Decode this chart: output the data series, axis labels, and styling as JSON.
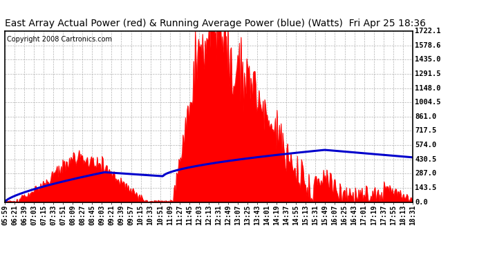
{
  "title": "East Array Actual Power (red) & Running Average Power (blue) (Watts)  Fri Apr 25 18:36",
  "copyright": "Copyright 2008 Cartronics.com",
  "ylabel_values": [
    0.0,
    143.5,
    287.0,
    430.5,
    574.0,
    717.5,
    861.0,
    1004.5,
    1148.0,
    1291.5,
    1435.0,
    1578.6,
    1722.1
  ],
  "ymax": 1722.1,
  "ymin": 0.0,
  "x_tick_labels": [
    "05:59",
    "06:21",
    "06:39",
    "07:03",
    "07:15",
    "07:33",
    "07:51",
    "08:09",
    "08:27",
    "08:45",
    "09:03",
    "09:21",
    "09:39",
    "09:57",
    "10:15",
    "10:33",
    "10:51",
    "11:09",
    "11:27",
    "11:45",
    "12:03",
    "12:13",
    "12:31",
    "12:49",
    "13:07",
    "13:25",
    "13:43",
    "14:01",
    "14:19",
    "14:37",
    "14:55",
    "15:13",
    "15:31",
    "15:49",
    "16:07",
    "16:25",
    "16:43",
    "17:01",
    "17:19",
    "17:37",
    "17:55",
    "18:13",
    "18:31"
  ],
  "background_color": "#ffffff",
  "plot_bg_color": "#ffffff",
  "grid_color": "#aaaaaa",
  "actual_color": "#ff0000",
  "avg_color": "#0000cc",
  "title_fontsize": 10,
  "copyright_fontsize": 7,
  "tick_fontsize": 7,
  "ytick_fontsize": 7.5
}
